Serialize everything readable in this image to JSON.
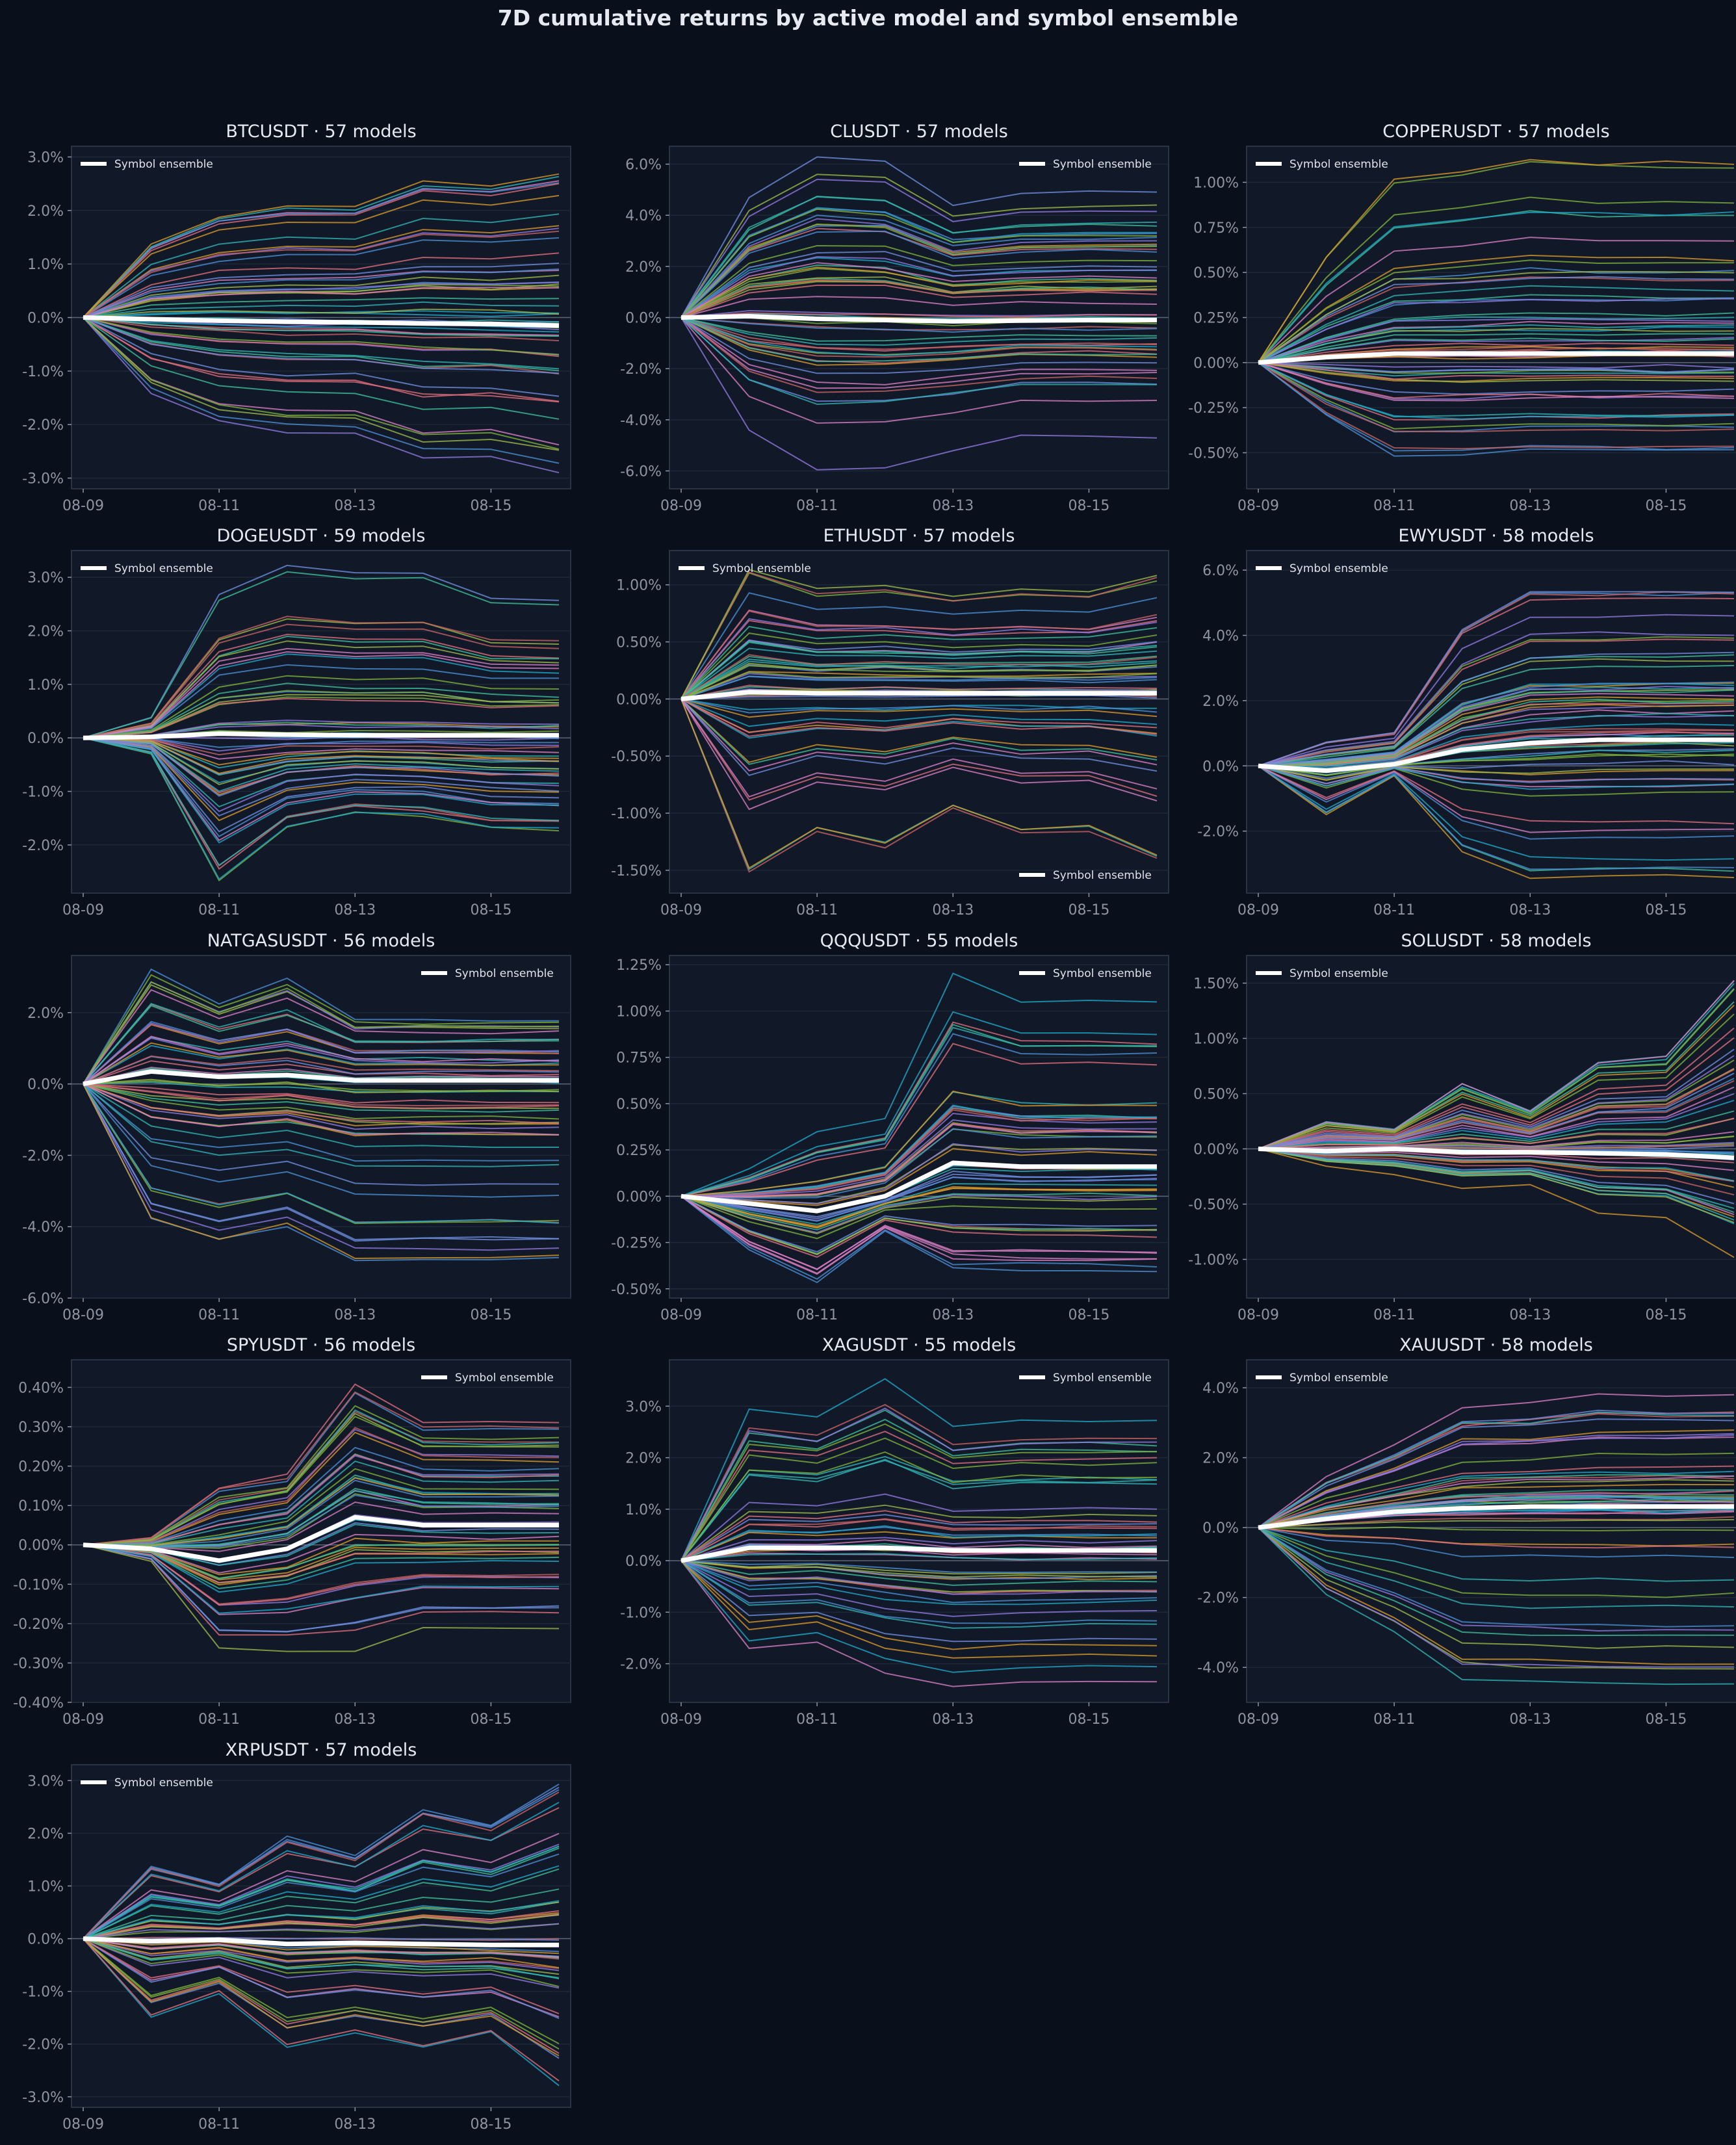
{
  "title": "7D cumulative returns by active model and symbol ensemble",
  "colors": {
    "background": "#0a0f1c",
    "panel": "#111827",
    "panel_border": "#2a3344",
    "grid": "#1e2838",
    "zero_line": "#5b6576",
    "tick_text": "#8d95a3",
    "title_text": "#e6e9f0",
    "ensemble": "#ffffff",
    "model_palette": [
      "#4c8fd6",
      "#e0707e",
      "#2fb5b5",
      "#d99a2b",
      "#8f7ae0",
      "#7fb33c",
      "#d97fc4",
      "#3fbf9a",
      "#c86464",
      "#6f8fe0",
      "#1fa9c9",
      "#a0b84a"
    ]
  },
  "chart_data": [
    {
      "type": "line",
      "title": "BTCUSDT · 57 models",
      "legend": "Symbol ensemble",
      "legend_position": "top-left",
      "x": [
        "08-09",
        "08-10",
        "08-11",
        "08-12",
        "08-13",
        "08-14",
        "08-15",
        "08-16"
      ],
      "xticks": [
        "08-09",
        "08-11",
        "08-13",
        "08-15"
      ],
      "ylim": [
        -3.2,
        3.2
      ],
      "yticks": [
        -3.0,
        -2.0,
        -1.0,
        0.0,
        1.0,
        2.0,
        3.0
      ],
      "yformat": "pct1",
      "grid": true,
      "ensemble": [
        0,
        -0.03,
        -0.06,
        -0.08,
        -0.09,
        -0.11,
        -0.12,
        -0.15
      ],
      "model_count": 57,
      "model_min": [
        0,
        -1.45,
        -2.0,
        -2.2,
        -2.2,
        -2.7,
        -2.65,
        -2.95
      ],
      "model_max": [
        0,
        1.45,
        2.0,
        2.2,
        2.2,
        2.7,
        2.65,
        2.85
      ]
    },
    {
      "type": "line",
      "title": "CLUSDT · 57 models",
      "legend": "Symbol ensemble",
      "legend_position": "top-right",
      "x": [
        "08-09",
        "08-10",
        "08-11",
        "08-12",
        "08-13",
        "08-14",
        "08-15",
        "08-16"
      ],
      "xticks": [
        "08-09",
        "08-11",
        "08-13",
        "08-15"
      ],
      "ylim": [
        -6.7,
        6.7
      ],
      "yticks": [
        -6.0,
        -4.0,
        -2.0,
        0.0,
        2.0,
        4.0,
        6.0
      ],
      "yformat": "pct1",
      "grid": true,
      "ensemble": [
        0,
        0.05,
        -0.05,
        -0.1,
        -0.15,
        -0.12,
        -0.1,
        -0.1
      ],
      "model_count": 57,
      "model_min": [
        0,
        -4.5,
        -6.0,
        -6.0,
        -5.3,
        -4.7,
        -4.7,
        -4.7
      ],
      "model_max": [
        0,
        4.9,
        6.7,
        6.5,
        4.7,
        5.1,
        5.2,
        5.2
      ]
    },
    {
      "type": "line",
      "title": "COPPERUSDT · 57 models",
      "legend": "Symbol ensemble",
      "legend_position": "top-left",
      "x": [
        "08-09",
        "08-10",
        "08-11",
        "08-12",
        "08-13",
        "08-14",
        "08-15",
        "08-16"
      ],
      "xticks": [
        "08-09",
        "08-11",
        "08-13",
        "08-15"
      ],
      "ylim": [
        -0.7,
        1.2
      ],
      "yticks": [
        -0.5,
        -0.25,
        0.0,
        0.25,
        0.5,
        0.75,
        1.0
      ],
      "yformat": "pct2",
      "grid": true,
      "ensemble": [
        0,
        0.03,
        0.05,
        0.05,
        0.05,
        0.05,
        0.05,
        0.05
      ],
      "model_count": 57,
      "model_min": [
        0,
        -0.35,
        -0.6,
        -0.6,
        -0.58,
        -0.58,
        -0.58,
        -0.58
      ],
      "model_max": [
        0,
        0.6,
        1.03,
        1.08,
        1.15,
        1.13,
        1.13,
        1.13
      ]
    },
    {
      "type": "line",
      "title": "DOGEUSDT · 59 models",
      "legend": "Symbol ensemble",
      "legend_position": "top-left",
      "x": [
        "08-09",
        "08-10",
        "08-11",
        "08-12",
        "08-13",
        "08-14",
        "08-15",
        "08-16"
      ],
      "xticks": [
        "08-09",
        "08-11",
        "08-13",
        "08-15"
      ],
      "ylim": [
        -2.9,
        3.5
      ],
      "yticks": [
        -2.0,
        -1.0,
        0.0,
        1.0,
        2.0,
        3.0
      ],
      "yformat": "pct1",
      "grid": true,
      "ensemble": [
        0,
        0.02,
        0.08,
        0.06,
        0.05,
        0.05,
        0.05,
        0.05
      ],
      "model_count": 59,
      "model_min": [
        0,
        -0.3,
        -2.65,
        -1.65,
        -1.4,
        -1.45,
        -1.7,
        -1.72
      ],
      "model_max": [
        0,
        0.4,
        2.75,
        3.35,
        3.2,
        3.22,
        2.7,
        2.65
      ]
    },
    {
      "type": "line",
      "title": "ETHUSDT · 57 models",
      "legend": "Symbol ensemble",
      "legend_position": "top-left and bottom-right",
      "x": [
        "08-09",
        "08-10",
        "08-11",
        "08-12",
        "08-13",
        "08-14",
        "08-15",
        "08-16"
      ],
      "xticks": [
        "08-09",
        "08-11",
        "08-13",
        "08-15"
      ],
      "ylim": [
        -1.7,
        1.3
      ],
      "yticks": [
        -1.5,
        -1.0,
        -0.5,
        0.0,
        0.5,
        1.0
      ],
      "yformat": "pct2",
      "grid": true,
      "ensemble": [
        0,
        0.06,
        0.05,
        0.05,
        0.05,
        0.05,
        0.05,
        0.05
      ],
      "model_count": 57,
      "model_min": [
        0,
        -1.58,
        -1.2,
        -1.35,
        -1.0,
        -1.22,
        -1.2,
        -1.47
      ],
      "model_max": [
        0,
        1.2,
        1.0,
        1.03,
        0.95,
        1.0,
        0.98,
        1.15
      ]
    },
    {
      "type": "line",
      "title": "EWYUSDT · 58 models",
      "legend": "Symbol ensemble",
      "legend_position": "top-left",
      "x": [
        "08-09",
        "08-10",
        "08-11",
        "08-12",
        "08-13",
        "08-14",
        "08-15",
        "08-16"
      ],
      "xticks": [
        "08-09",
        "08-11",
        "08-13",
        "08-15"
      ],
      "ylim": [
        -3.9,
        6.6
      ],
      "yticks": [
        -2.0,
        0.0,
        2.0,
        4.0,
        6.0
      ],
      "yformat": "pct1",
      "grid": true,
      "ensemble": [
        0,
        -0.15,
        0.05,
        0.5,
        0.7,
        0.8,
        0.8,
        0.8
      ],
      "model_count": 58,
      "model_min": [
        0,
        -1.5,
        -0.3,
        -2.6,
        -3.4,
        -3.4,
        -3.4,
        -3.4
      ],
      "model_max": [
        0,
        0.9,
        1.2,
        4.9,
        6.2,
        6.2,
        6.2,
        6.2
      ]
    },
    {
      "type": "line",
      "title": "NATGASUSDT · 56 models",
      "legend": "Symbol ensemble",
      "legend_position": "top-right",
      "x": [
        "08-09",
        "08-10",
        "08-11",
        "08-12",
        "08-13",
        "08-14",
        "08-15",
        "08-16"
      ],
      "xticks": [
        "08-09",
        "08-11",
        "08-13",
        "08-15"
      ],
      "ylim": [
        -6.0,
        3.6
      ],
      "yticks": [
        -6.0,
        -4.0,
        -2.0,
        0.0,
        2.0
      ],
      "yformat": "pct1",
      "grid": true,
      "ensemble": [
        0,
        0.35,
        0.2,
        0.25,
        0.1,
        0.1,
        0.1,
        0.1
      ],
      "model_count": 56,
      "model_min": [
        0,
        -4.3,
        -4.9,
        -4.5,
        -5.5,
        -5.5,
        -5.5,
        -5.5
      ],
      "model_max": [
        0,
        3.4,
        2.4,
        3.1,
        1.9,
        1.9,
        1.9,
        1.9
      ]
    },
    {
      "type": "line",
      "title": "QQQUSDT · 55 models",
      "legend": "Symbol ensemble",
      "legend_position": "top-right",
      "x": [
        "08-09",
        "08-10",
        "08-11",
        "08-12",
        "08-13",
        "08-14",
        "08-15",
        "08-16"
      ],
      "xticks": [
        "08-09",
        "08-11",
        "08-13",
        "08-15"
      ],
      "ylim": [
        -0.55,
        1.3
      ],
      "yticks": [
        -0.5,
        -0.25,
        0.0,
        0.25,
        0.5,
        0.75,
        1.0,
        1.25
      ],
      "yformat": "pct2",
      "grid": true,
      "ensemble": [
        0,
        -0.04,
        -0.08,
        0.0,
        0.18,
        0.16,
        0.16,
        0.16
      ],
      "model_count": 55,
      "model_min": [
        0,
        -0.3,
        -0.48,
        -0.2,
        -0.42,
        -0.42,
        -0.43,
        -0.43
      ],
      "model_max": [
        0,
        0.15,
        0.36,
        0.43,
        1.22,
        1.07,
        1.07,
        1.07
      ]
    },
    {
      "type": "line",
      "title": "SOLUSDT · 58 models",
      "legend": "Symbol ensemble",
      "legend_position": "top-left",
      "x": [
        "08-09",
        "08-10",
        "08-11",
        "08-12",
        "08-13",
        "08-14",
        "08-15",
        "08-16"
      ],
      "xticks": [
        "08-09",
        "08-11",
        "08-13",
        "08-15"
      ],
      "ylim": [
        -1.35,
        1.75
      ],
      "yticks": [
        -1.0,
        -0.5,
        0.0,
        0.5,
        1.0,
        1.5
      ],
      "yformat": "pct2",
      "grid": true,
      "ensemble": [
        0,
        -0.02,
        0.0,
        -0.03,
        -0.03,
        -0.04,
        -0.05,
        -0.08
      ],
      "model_count": 58,
      "model_min": [
        0,
        -0.2,
        -0.3,
        -0.45,
        -0.42,
        -0.75,
        -0.8,
        -1.24
      ],
      "model_max": [
        0,
        0.25,
        0.18,
        0.6,
        0.35,
        0.8,
        0.85,
        1.57
      ]
    },
    {
      "type": "line",
      "title": "SPYUSDT · 56 models",
      "legend": "Symbol ensemble",
      "legend_position": "top-right",
      "x": [
        "08-09",
        "08-10",
        "08-11",
        "08-12",
        "08-13",
        "08-14",
        "08-15",
        "08-16"
      ],
      "xticks": [
        "08-09",
        "08-11",
        "08-13",
        "08-15"
      ],
      "ylim": [
        -0.4,
        0.47
      ],
      "yticks": [
        -0.4,
        -0.3,
        -0.2,
        -0.1,
        0.0,
        0.1,
        0.2,
        0.3,
        0.4
      ],
      "yformat": "pct2",
      "grid": true,
      "ensemble": [
        0,
        -0.01,
        -0.04,
        -0.01,
        0.07,
        0.05,
        0.05,
        0.05
      ],
      "model_count": 56,
      "model_min": [
        0,
        -0.05,
        -0.32,
        -0.34,
        -0.36,
        -0.28,
        -0.28,
        -0.28
      ],
      "model_max": [
        0,
        0.02,
        0.16,
        0.19,
        0.43,
        0.33,
        0.33,
        0.33
      ]
    },
    {
      "type": "line",
      "title": "XAGUSDT · 55 models",
      "legend": "Symbol ensemble",
      "legend_position": "top-right",
      "x": [
        "08-09",
        "08-10",
        "08-11",
        "08-12",
        "08-13",
        "08-14",
        "08-15",
        "08-16"
      ],
      "xticks": [
        "08-09",
        "08-11",
        "08-13",
        "08-15"
      ],
      "ylim": [
        -2.75,
        3.9
      ],
      "yticks": [
        -2.0,
        -1.0,
        0.0,
        1.0,
        2.0,
        3.0
      ],
      "yformat": "pct1",
      "grid": true,
      "ensemble": [
        0,
        0.25,
        0.25,
        0.25,
        0.2,
        0.2,
        0.2,
        0.2
      ],
      "model_count": 55,
      "model_min": [
        0,
        -1.75,
        -1.6,
        -2.2,
        -2.45,
        -2.4,
        -2.35,
        -2.35
      ],
      "model_max": [
        0,
        3.05,
        2.85,
        3.6,
        2.65,
        2.8,
        2.8,
        2.8
      ]
    },
    {
      "type": "line",
      "title": "XAUUSDT · 58 models",
      "legend": "Symbol ensemble",
      "legend_position": "top-left",
      "x": [
        "08-09",
        "08-10",
        "08-11",
        "08-12",
        "08-13",
        "08-14",
        "08-15",
        "08-16"
      ],
      "xticks": [
        "08-09",
        "08-11",
        "08-13",
        "08-15"
      ],
      "ylim": [
        -5.0,
        4.8
      ],
      "yticks": [
        -4.0,
        -2.0,
        0.0,
        2.0,
        4.0
      ],
      "yformat": "pct1",
      "grid": true,
      "ensemble": [
        0,
        0.25,
        0.45,
        0.55,
        0.6,
        0.6,
        0.6,
        0.6
      ],
      "model_count": 58,
      "model_min": [
        0,
        -2.0,
        -3.1,
        -4.5,
        -4.6,
        -4.65,
        -4.65,
        -4.65
      ],
      "model_max": [
        0,
        1.7,
        2.7,
        4.0,
        4.1,
        4.4,
        4.4,
        4.4
      ]
    },
    {
      "type": "line",
      "title": "XRPUSDT · 57 models",
      "legend": "Symbol ensemble",
      "legend_position": "top-left",
      "x": [
        "08-09",
        "08-10",
        "08-11",
        "08-12",
        "08-13",
        "08-14",
        "08-15",
        "08-16"
      ],
      "xticks": [
        "08-09",
        "08-11",
        "08-13",
        "08-15"
      ],
      "ylim": [
        -3.2,
        3.3
      ],
      "yticks": [
        -3.0,
        -2.0,
        -1.0,
        0.0,
        1.0,
        2.0,
        3.0
      ],
      "yformat": "pct1",
      "grid": true,
      "ensemble": [
        0,
        -0.05,
        -0.02,
        -0.1,
        -0.08,
        -0.1,
        -0.12,
        -0.12
      ],
      "model_count": 57,
      "model_min": [
        0,
        -1.6,
        -1.1,
        -2.2,
        -1.9,
        -2.2,
        -1.9,
        -2.95
      ],
      "model_max": [
        0,
        1.4,
        1.05,
        1.95,
        1.6,
        2.5,
        2.2,
        3.0
      ]
    }
  ]
}
